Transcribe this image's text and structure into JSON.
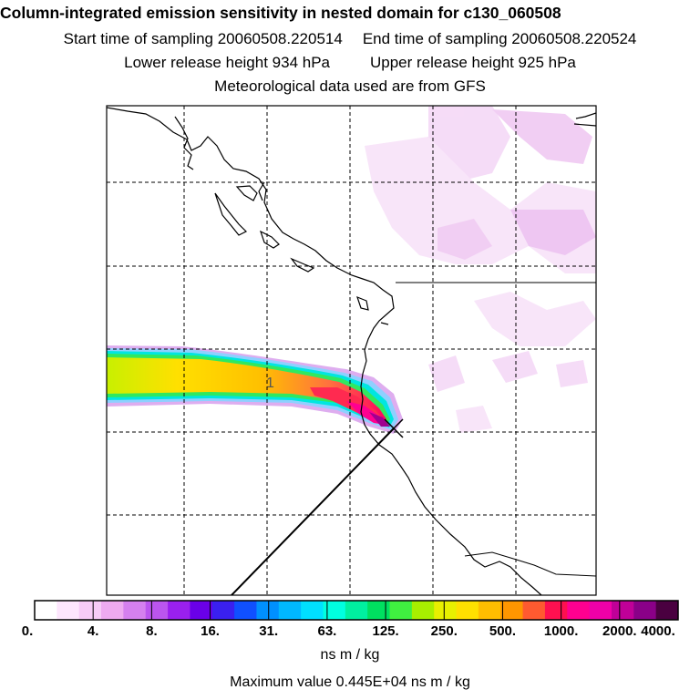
{
  "title": {
    "main": "Column-integrated emission sensitivity in nested domain for c130_060508",
    "start": "Start time of sampling 20060508.220514",
    "end": "End time of sampling 20060508.220524",
    "lower": "Lower release height  934 hPa",
    "upper": "Upper release height  925 hPa",
    "met": "Meteorological data used are from GFS"
  },
  "plume": {
    "label": "1"
  },
  "colorbar": {
    "labels": [
      "0.",
      "4.",
      "8.",
      "16.",
      "31.",
      "63.",
      "125.",
      "250.",
      "500.",
      "1000.",
      "2000.",
      "4000."
    ],
    "colors": [
      "#ffffff",
      "#fde6fd",
      "#f7cbf7",
      "#eeaaf0",
      "#d580ee",
      "#bb55ee",
      "#9a20ee",
      "#6a00e8",
      "#3a20f0",
      "#1050ff",
      "#0090ff",
      "#00b8ff",
      "#00e0ff",
      "#00ffe0",
      "#00f0a0",
      "#00e060",
      "#40f040",
      "#a8f000",
      "#e8f000",
      "#ffe000",
      "#ffbe00",
      "#ff9600",
      "#ff5a30",
      "#ff1050",
      "#ff0090",
      "#f000a8",
      "#c00098",
      "#8a0088",
      "#4a0040"
    ],
    "unit": "ns m / kg"
  },
  "max_value": "Maximum value  0.445E+04 ns m / kg"
}
